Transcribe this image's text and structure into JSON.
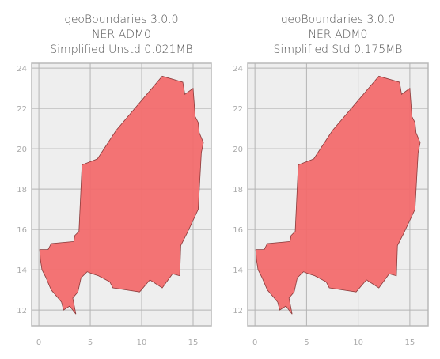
{
  "chart_data": [
    {
      "type": "map",
      "title": [
        "geoBoundaries 3.0.0",
        "NER ADM0",
        "Simplified Unstd 0.021MB"
      ],
      "xlim": [
        -0.7,
        16.77
      ],
      "ylim": [
        11.22,
        24.24
      ],
      "xticks": [
        0,
        5,
        10,
        15
      ],
      "yticks": [
        12,
        14,
        16,
        18,
        20,
        22,
        24
      ],
      "grid": true,
      "color": "#f26b6d",
      "x": [
        0.08,
        0.9,
        1.2,
        3.4,
        3.5,
        3.9,
        4.2,
        5.7,
        7.5,
        12.0,
        14.0,
        14.2,
        15.0,
        15.2,
        15.5,
        15.6,
        16.0,
        15.8,
        15.5,
        14.4,
        13.8,
        13.7,
        13.0,
        12.0,
        10.8,
        9.8,
        8.5,
        7.2,
        6.9,
        5.8,
        5.2,
        4.7,
        4.1,
        3.8,
        3.3,
        3.6,
        3.0,
        2.4,
        2.2,
        1.7,
        1.2,
        0.7,
        0.3,
        0.15
      ],
      "y": [
        15.0,
        15.0,
        15.3,
        15.4,
        15.7,
        15.9,
        19.2,
        19.5,
        20.9,
        23.6,
        23.3,
        22.7,
        23.0,
        21.6,
        21.3,
        20.8,
        20.3,
        19.8,
        17.0,
        15.8,
        15.2,
        13.7,
        13.8,
        13.1,
        13.5,
        12.9,
        13.0,
        13.1,
        13.4,
        13.7,
        13.8,
        13.9,
        13.6,
        12.9,
        12.6,
        11.8,
        12.2,
        12.0,
        12.4,
        12.7,
        13.0,
        13.6,
        14.0,
        14.5
      ]
    },
    {
      "type": "map",
      "title": [
        "geoBoundaries 3.0.0",
        "NER ADM0",
        "Simplified Std 0.175MB"
      ],
      "xlim": [
        -0.7,
        16.77
      ],
      "ylim": [
        11.22,
        24.24
      ],
      "xticks": [
        0,
        5,
        10,
        15
      ],
      "yticks": [
        12,
        14,
        16,
        18,
        20,
        22,
        24
      ],
      "grid": true,
      "color": "#f26b6d",
      "x": [
        0.08,
        0.9,
        1.2,
        3.4,
        3.5,
        3.9,
        4.2,
        5.7,
        7.5,
        12.0,
        14.0,
        14.2,
        15.0,
        15.2,
        15.5,
        15.6,
        16.0,
        15.8,
        15.5,
        14.4,
        13.8,
        13.7,
        13.0,
        12.0,
        10.8,
        9.8,
        8.5,
        7.2,
        6.9,
        5.8,
        5.2,
        4.7,
        4.1,
        3.8,
        3.3,
        3.6,
        3.0,
        2.4,
        2.2,
        1.7,
        1.2,
        0.7,
        0.3,
        0.15
      ],
      "y": [
        15.0,
        15.0,
        15.3,
        15.4,
        15.7,
        15.9,
        19.2,
        19.5,
        20.9,
        23.6,
        23.3,
        22.7,
        23.0,
        21.6,
        21.3,
        20.8,
        20.3,
        19.8,
        17.0,
        15.8,
        15.2,
        13.7,
        13.8,
        13.1,
        13.5,
        12.9,
        13.0,
        13.1,
        13.4,
        13.7,
        13.8,
        13.9,
        13.6,
        12.9,
        12.6,
        11.8,
        12.2,
        12.0,
        12.4,
        12.7,
        13.0,
        13.6,
        14.0,
        14.5
      ]
    }
  ]
}
